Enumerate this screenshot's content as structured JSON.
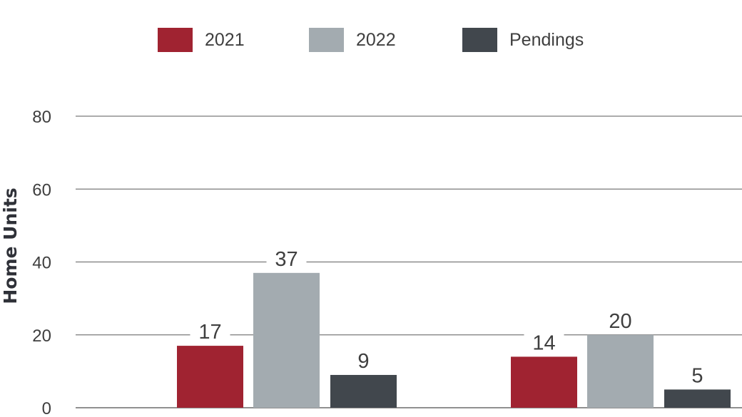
{
  "chart_data": {
    "type": "bar",
    "title": "",
    "xlabel": "",
    "ylabel": "Home Units",
    "categories": [
      "",
      ""
    ],
    "series": [
      {
        "name": "2021",
        "values": [
          17,
          14
        ],
        "color": "#a02331"
      },
      {
        "name": "2022",
        "values": [
          37,
          20
        ],
        "color": "#a3abb0"
      },
      {
        "name": "Pendings",
        "values": [
          9,
          5
        ],
        "color": "#41474d"
      }
    ],
    "ylim": [
      0,
      80
    ],
    "yticks": [
      "0",
      "20",
      "40",
      "60",
      "80"
    ],
    "grid": true,
    "legend": "top-center",
    "data_labels": true
  }
}
